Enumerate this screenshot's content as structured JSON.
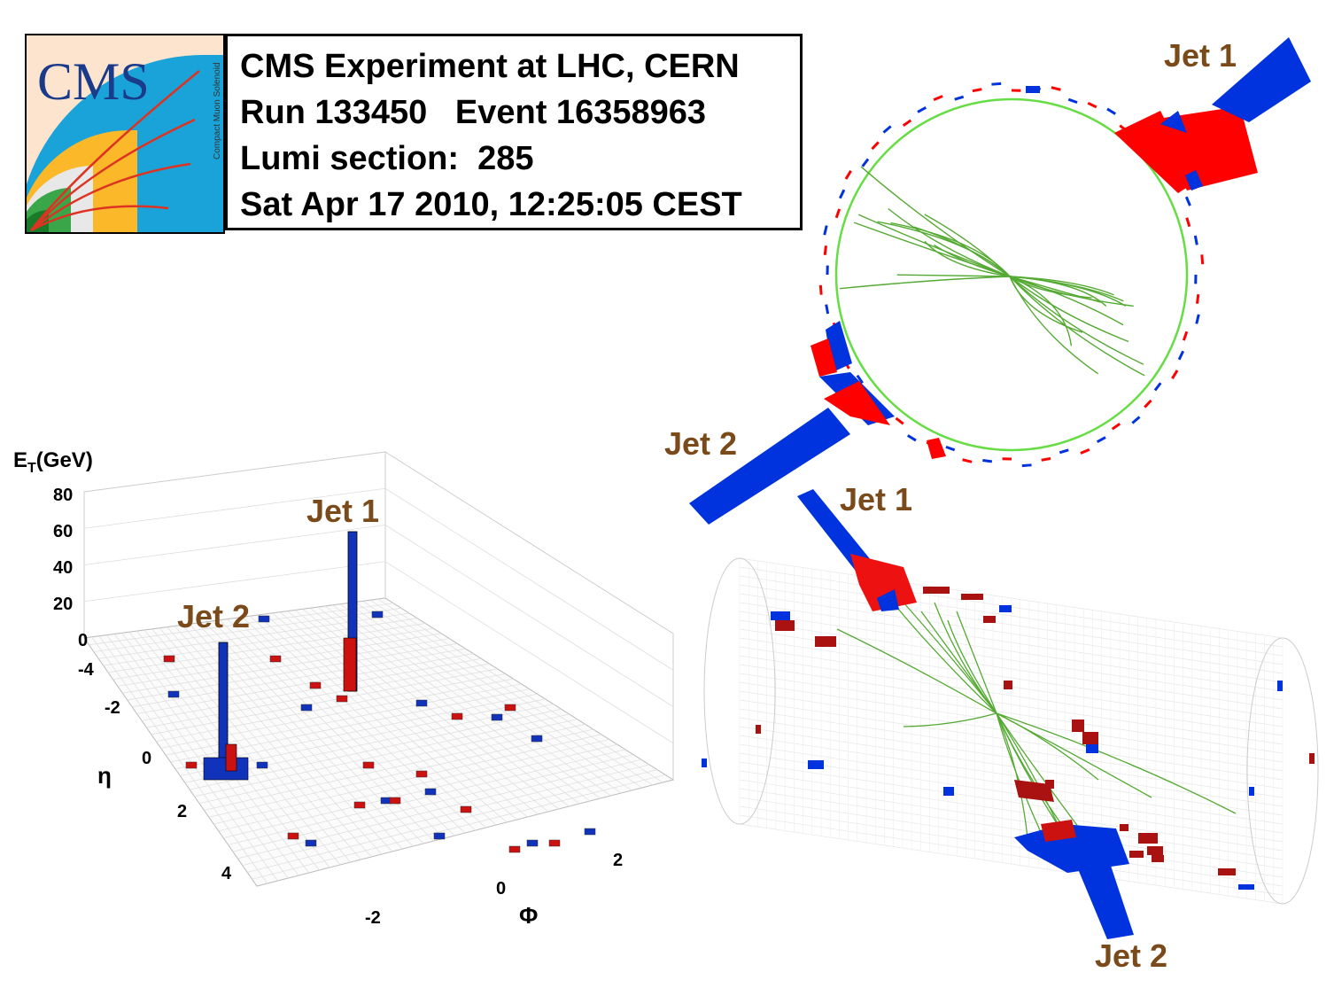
{
  "header": {
    "line1": "CMS Experiment at LHC, CERN",
    "line2": "Run 133450   Event 16358963",
    "line3": "Lumi section:  285",
    "line4": "Sat Apr 17 2010, 12:25:05 CEST"
  },
  "logo": {
    "title": "CMS",
    "subtitle": "Compact Muon Solenoid"
  },
  "labels": {
    "jet1_top": "Jet 1",
    "jet2_circle": "Jet 2",
    "jet1_lego": "Jet 1",
    "jet2_lego": "Jet 2",
    "jet1_cyl": "Jet 1",
    "jet2_cyl": "Jet 2"
  },
  "lego_axes": {
    "z_label_main": "E",
    "z_label_sub": "T",
    "z_label_unit": "(GeV)",
    "z_ticks": [
      "80",
      "60",
      "40",
      "20",
      "0"
    ],
    "eta_label": "η",
    "eta_ticks": [
      "-4",
      "-2",
      "0",
      "2",
      "4"
    ],
    "phi_label": "Φ",
    "phi_ticks": [
      "-2",
      "0",
      "2"
    ]
  },
  "colors": {
    "ecal": "#ff0000",
    "hcal": "#0033dd",
    "track": "#55aa33",
    "lego_red": "#cc1111",
    "lego_blue": "#1133bb",
    "label_brown": "#7a4a1a"
  }
}
